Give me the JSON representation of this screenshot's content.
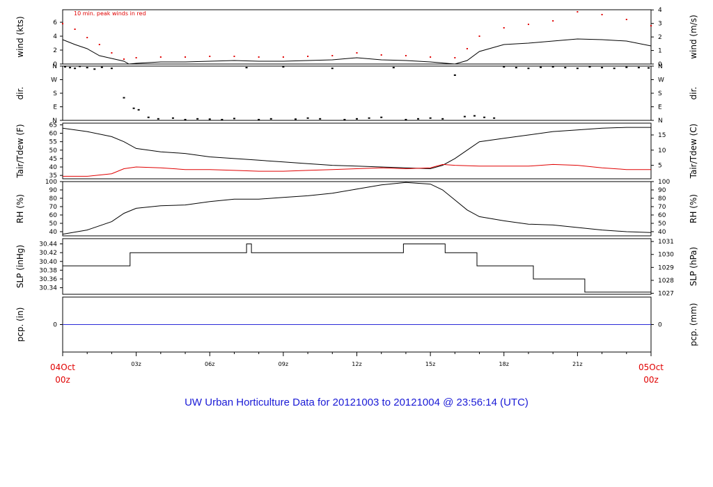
{
  "footer": "UW Urban Horticulture Data for 20121003  to  20121004 @ 23:56:14  (UTC)",
  "wind_note": "10 min. peak winds in red",
  "x_axis": {
    "start_date": "04Oct",
    "start_hour": "00z",
    "end_date": "05Oct",
    "end_hour": "00z",
    "ticks": [
      "03z",
      "06z",
      "09z",
      "12z",
      "15z",
      "18z",
      "21z"
    ]
  },
  "colors": {
    "red": "#e00000",
    "blue": "#1a1ad6",
    "line": "#000000",
    "pcp_line": "#2a2ad8"
  },
  "chart_data": [
    {
      "type": "line",
      "id": "wind",
      "ylabel_left": "wind (kts)",
      "ylabel_right": "wind (m/s)",
      "left_ticks": [
        "0",
        "2",
        "4",
        "6"
      ],
      "right_ticks": [
        "0",
        "1",
        "2",
        "3",
        "4"
      ],
      "ylim": [
        0,
        7.8
      ],
      "xlim_hours": [
        0,
        24
      ],
      "series": [
        {
          "x": [
            0,
            0.5,
            1,
            1.5,
            2,
            2.5,
            2.7,
            3,
            4,
            5,
            6,
            7,
            8,
            9,
            10,
            11,
            12,
            13,
            14,
            15,
            16,
            16.5,
            17,
            18,
            19,
            20,
            21,
            22,
            23,
            24
          ],
          "values": [
            3.5,
            2.8,
            2.2,
            1.2,
            0.8,
            0.4,
            0,
            0.1,
            0.3,
            0.3,
            0.4,
            0.5,
            0.4,
            0.4,
            0.5,
            0.6,
            0.9,
            0.6,
            0.5,
            0.3,
            0,
            0.5,
            1.8,
            2.8,
            3.0,
            3.3,
            3.6,
            3.5,
            3.3,
            2.6
          ]
        },
        {
          "name": "10 min. peak winds in red",
          "x": [
            0,
            0.5,
            1,
            1.5,
            2,
            2.5,
            3,
            4,
            5,
            6,
            7,
            8,
            9,
            10,
            11,
            12,
            13,
            14,
            15,
            16,
            16.5,
            17,
            18,
            19,
            20,
            21,
            22,
            23,
            24
          ],
          "values": [
            5.8,
            5.0,
            3.8,
            2.8,
            1.6,
            0.7,
            0.9,
            1.0,
            1.0,
            1.1,
            1.1,
            1.0,
            1.0,
            1.1,
            1.2,
            1.6,
            1.3,
            1.2,
            1.0,
            0.9,
            2.2,
            4.0,
            5.2,
            5.7,
            6.2,
            7.5,
            7.1,
            6.4,
            5.5
          ]
        }
      ]
    },
    {
      "type": "scatter",
      "id": "dir",
      "ylabel_left": "dir.",
      "ylabel_right": "dir.",
      "left_ticks": [
        "N",
        "E",
        "S",
        "W",
        "N"
      ],
      "right_ticks": [
        "N",
        "E",
        "S",
        "W",
        "N"
      ],
      "ylim": [
        0,
        360
      ],
      "xlim_hours": [
        0,
        24
      ],
      "series": [
        {
          "x": [
            0.1,
            0.3,
            0.5,
            0.7,
            1.0,
            1.3,
            1.6,
            2.0,
            2.5,
            2.9,
            3.1,
            3.5,
            3.9,
            4.5,
            5.0,
            5.5,
            6.0,
            6.5,
            7.0,
            7.5,
            8.0,
            8.5,
            9.0,
            9.5,
            10.0,
            10.5,
            11.0,
            11.5,
            12.0,
            12.5,
            13.0,
            13.5,
            14.0,
            14.5,
            15.0,
            15.5,
            16.0,
            16.4,
            16.8,
            17.2,
            17.6,
            18.0,
            18.5,
            19.0,
            19.5,
            20.0,
            20.5,
            21.0,
            21.5,
            22.0,
            22.5,
            23.0,
            23.5,
            23.9
          ],
          "values": [
            355,
            350,
            345,
            358,
            350,
            340,
            352,
            345,
            150,
            80,
            70,
            20,
            10,
            15,
            5,
            10,
            8,
            5,
            12,
            350,
            5,
            10,
            355,
            8,
            15,
            10,
            345,
            5,
            10,
            15,
            20,
            350,
            5,
            10,
            15,
            10,
            300,
            25,
            30,
            20,
            15,
            355,
            350,
            345,
            352,
            355,
            350,
            345,
            355,
            350,
            345,
            352,
            350,
            348
          ]
        }
      ]
    },
    {
      "type": "line",
      "id": "temp",
      "ylabel_left": "Tair/Tdew (F)",
      "ylabel_right": "Tair/Tdew (C)",
      "left_ticks": [
        "35",
        "40",
        "45",
        "50",
        "55",
        "60",
        "65"
      ],
      "right_ticks": [
        "5",
        "10",
        "15"
      ],
      "ylim": [
        33,
        66
      ],
      "xlim_hours": [
        0,
        24
      ],
      "series": [
        {
          "name": "Tair",
          "x": [
            0,
            1,
            2,
            2.5,
            3,
            4,
            5,
            6,
            7,
            8,
            9,
            10,
            11,
            12,
            13,
            14,
            15,
            15.5,
            16,
            16.5,
            17,
            18,
            19,
            20,
            21,
            22,
            23,
            24
          ],
          "values": [
            63,
            61,
            58,
            55,
            51,
            49,
            48,
            46,
            45,
            44,
            43,
            42,
            41,
            40.5,
            40,
            39.5,
            39,
            41,
            45,
            50,
            55,
            57,
            59,
            61,
            62,
            63,
            63.5,
            63.5
          ]
        },
        {
          "name": "Tdew",
          "x": [
            0,
            1,
            2,
            2.5,
            3,
            4,
            5,
            6,
            7,
            8,
            9,
            10,
            11,
            12,
            13,
            14,
            15,
            15.5,
            16,
            17,
            18,
            19,
            20,
            21,
            22,
            23,
            24
          ],
          "values": [
            34.5,
            34.5,
            36,
            39,
            40,
            39.5,
            38.5,
            38.5,
            38,
            37.5,
            37.5,
            38,
            38.5,
            39,
            39.5,
            39,
            39.5,
            41.5,
            41,
            40.5,
            40.5,
            40.5,
            41.5,
            41,
            39.5,
            38.5,
            38.5
          ]
        }
      ]
    },
    {
      "type": "line",
      "id": "rh",
      "ylabel_left": "RH (%)",
      "ylabel_right": "RH (%)",
      "left_ticks": [
        "40",
        "50",
        "60",
        "70",
        "80",
        "90",
        "100"
      ],
      "right_ticks": [
        "40",
        "50",
        "60",
        "70",
        "80",
        "90",
        "100"
      ],
      "ylim": [
        35,
        100
      ],
      "xlim_hours": [
        0,
        24
      ],
      "series": [
        {
          "x": [
            0,
            1,
            2,
            2.5,
            3,
            4,
            5,
            6,
            7,
            8,
            9,
            10,
            11,
            12,
            13,
            14,
            15,
            15.5,
            16,
            16.5,
            17,
            18,
            19,
            20,
            21,
            22,
            23,
            24
          ],
          "values": [
            37,
            42,
            52,
            62,
            68,
            71,
            72,
            76,
            79,
            79,
            81,
            83,
            86,
            91,
            96,
            99,
            97,
            90,
            78,
            66,
            58,
            53,
            49,
            48,
            45,
            42,
            40,
            39
          ]
        }
      ]
    },
    {
      "type": "line",
      "id": "slp",
      "ylabel_left": "SLP (inHg)",
      "ylabel_right": "SLP (hPa)",
      "left_ticks": [
        "30.34",
        "30.36",
        "30.38",
        "30.40",
        "30.42",
        "30.44"
      ],
      "right_ticks": [
        "1027",
        "1028",
        "1029",
        "1030",
        "1031"
      ],
      "ylim": [
        30.325,
        30.452
      ],
      "xlim_hours": [
        0,
        24
      ],
      "series": [
        {
          "x": [
            0,
            2.75,
            2.75,
            7.5,
            7.5,
            7.7,
            7.7,
            13.9,
            13.9,
            15.6,
            15.6,
            16.9,
            16.9,
            19.2,
            19.2,
            21.3,
            21.3,
            24
          ],
          "values": [
            30.39,
            30.39,
            30.42,
            30.42,
            30.44,
            30.44,
            30.42,
            30.42,
            30.44,
            30.44,
            30.42,
            30.42,
            30.39,
            30.39,
            30.36,
            30.36,
            30.33,
            30.33
          ]
        }
      ]
    },
    {
      "type": "line",
      "id": "pcp",
      "ylabel_left": "pcp. (in)",
      "ylabel_right": "pcp. (mm)",
      "left_ticks": [
        "0"
      ],
      "right_ticks": [
        "0"
      ],
      "ylim": [
        -1,
        1
      ],
      "xlim_hours": [
        0,
        24
      ],
      "series": [
        {
          "x": [
            0,
            24
          ],
          "values": [
            0,
            0
          ]
        }
      ]
    }
  ]
}
